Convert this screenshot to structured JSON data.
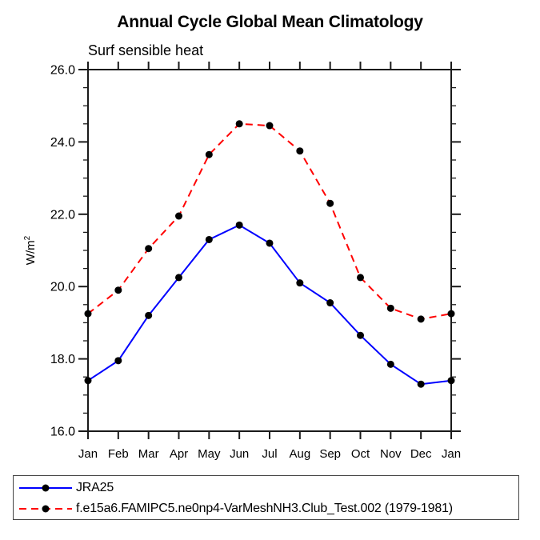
{
  "chart_data": {
    "type": "line",
    "title": "Annual Cycle Global Mean Climatology",
    "subtitle": "Surf sensible heat",
    "ylabel": "W/m²",
    "xlabel": "",
    "categories": [
      "Jan",
      "Feb",
      "Mar",
      "Apr",
      "May",
      "Jun",
      "Jul",
      "Aug",
      "Sep",
      "Oct",
      "Nov",
      "Dec",
      "Jan"
    ],
    "series": [
      {
        "name": "JRA25",
        "color": "#0000ff",
        "line_style": "solid",
        "marker": "filled-black-circle",
        "values": [
          17.4,
          17.95,
          19.2,
          20.25,
          21.3,
          21.7,
          21.2,
          20.1,
          19.55,
          18.65,
          17.85,
          17.3,
          17.4
        ]
      },
      {
        "name": "f.e15a6.FAMIPC5.ne0np4-VarMeshNH3.Club_Test.002 (1979-1981)",
        "color": "#ff0000",
        "line_style": "dashed",
        "marker": "filled-black-circle",
        "values": [
          19.25,
          19.9,
          21.05,
          21.95,
          23.65,
          24.5,
          24.45,
          23.75,
          22.3,
          20.25,
          19.4,
          19.1,
          19.25
        ]
      }
    ],
    "ylim": [
      16.0,
      26.0
    ],
    "ytick_major_step": 2.0,
    "ytick_minor_step": 0.5,
    "ytick_labels": [
      "16.0",
      "18.0",
      "20.0",
      "22.0",
      "24.0",
      "26.0"
    ],
    "grid": "off",
    "legend_position": "bottom-left-boxed",
    "axis_color": "#1a1a1a",
    "marker_color": "#000000"
  }
}
